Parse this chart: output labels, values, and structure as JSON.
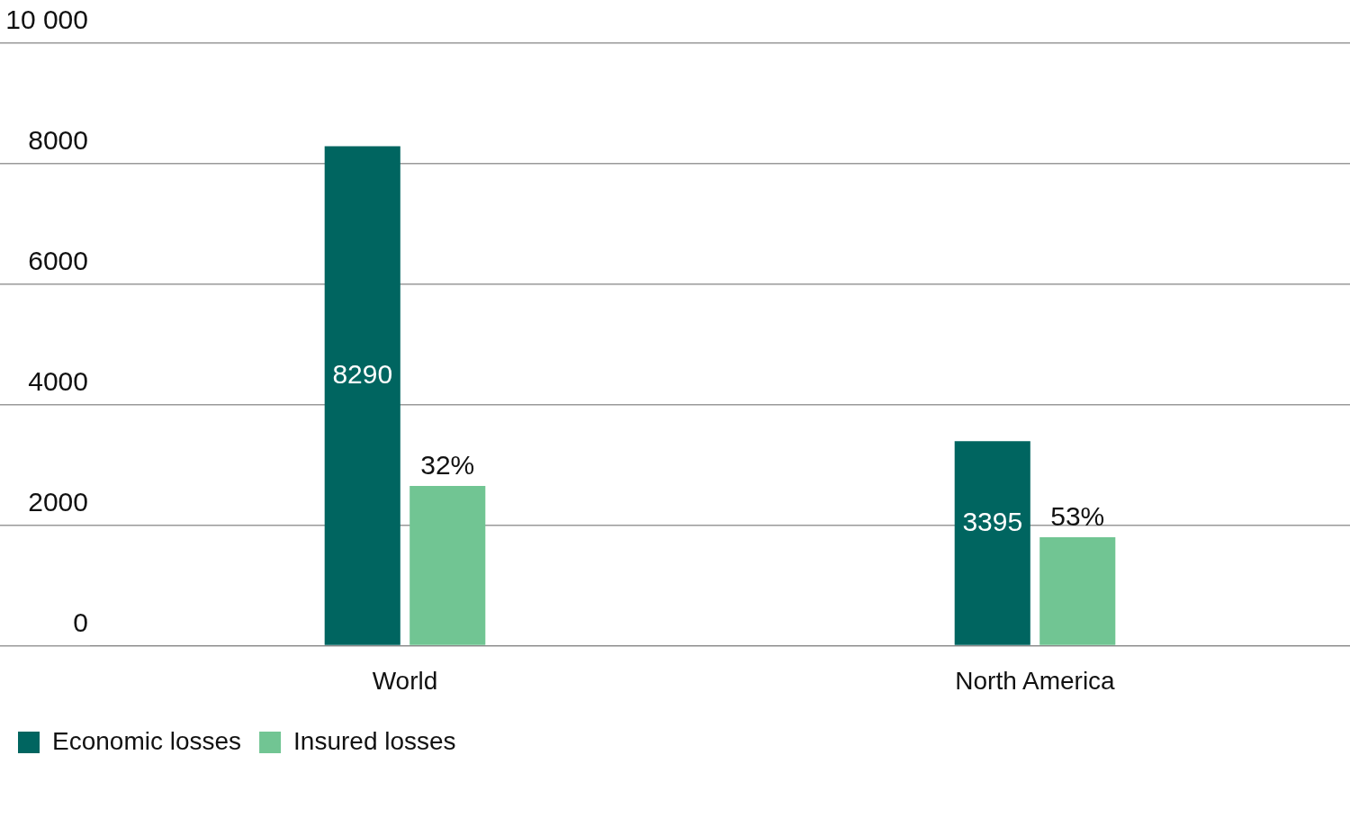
{
  "chart_data": {
    "type": "bar",
    "categories": [
      "World",
      "North America"
    ],
    "series": [
      {
        "name": "Economic losses",
        "color": "#006560",
        "values": [
          8290,
          3395
        ],
        "value_labels": [
          "8290",
          "3395"
        ]
      },
      {
        "name": "Insured losses",
        "color": "#71c593",
        "values": [
          2650,
          1800
        ]
      }
    ],
    "annotations": [
      "32%",
      "53%"
    ],
    "ylim": [
      0,
      10000
    ],
    "yticks": [
      0,
      2000,
      4000,
      6000,
      8000,
      {
        "value": 10000,
        "label": "10 000"
      }
    ],
    "grid": "y",
    "legend": "bottom left"
  }
}
